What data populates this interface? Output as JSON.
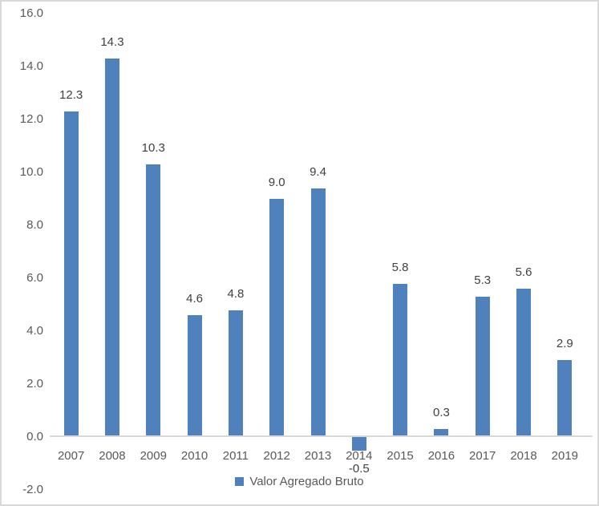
{
  "chart_data": {
    "type": "bar",
    "title": "",
    "xlabel": "",
    "ylabel": "",
    "categories": [
      "2007",
      "2008",
      "2009",
      "2010",
      "2011",
      "2012",
      "2013",
      "2014",
      "2015",
      "2016",
      "2017",
      "2018",
      "2019"
    ],
    "series": [
      {
        "name": "Valor Agregado Bruto",
        "values": [
          12.3,
          14.3,
          10.3,
          4.6,
          4.8,
          9.0,
          9.4,
          -0.5,
          5.8,
          0.3,
          5.3,
          5.6,
          2.9
        ]
      }
    ],
    "data_labels": [
      "12.3",
      "14.3",
      "10.3",
      "4.6",
      "4.8",
      "9.0",
      "9.4",
      "-0.5",
      "5.8",
      "0.3",
      "5.3",
      "5.6",
      "2.9"
    ],
    "ylim": [
      -2.0,
      16.0
    ],
    "ytick_step": 2.0,
    "ytick_labels": [
      "16.0",
      "14.0",
      "12.0",
      "10.0",
      "8.0",
      "6.0",
      "4.0",
      "2.0",
      "0.0",
      "-2.0"
    ],
    "grid": false,
    "legend": {
      "position": "bottom",
      "label": "Valor Agregado Bruto"
    },
    "colors": {
      "bar": "#4f81bd",
      "axis_line": "#d9d9d9",
      "border": "#d9d9d9",
      "tick_text": "#595959",
      "data_label_text": "#404040"
    }
  }
}
